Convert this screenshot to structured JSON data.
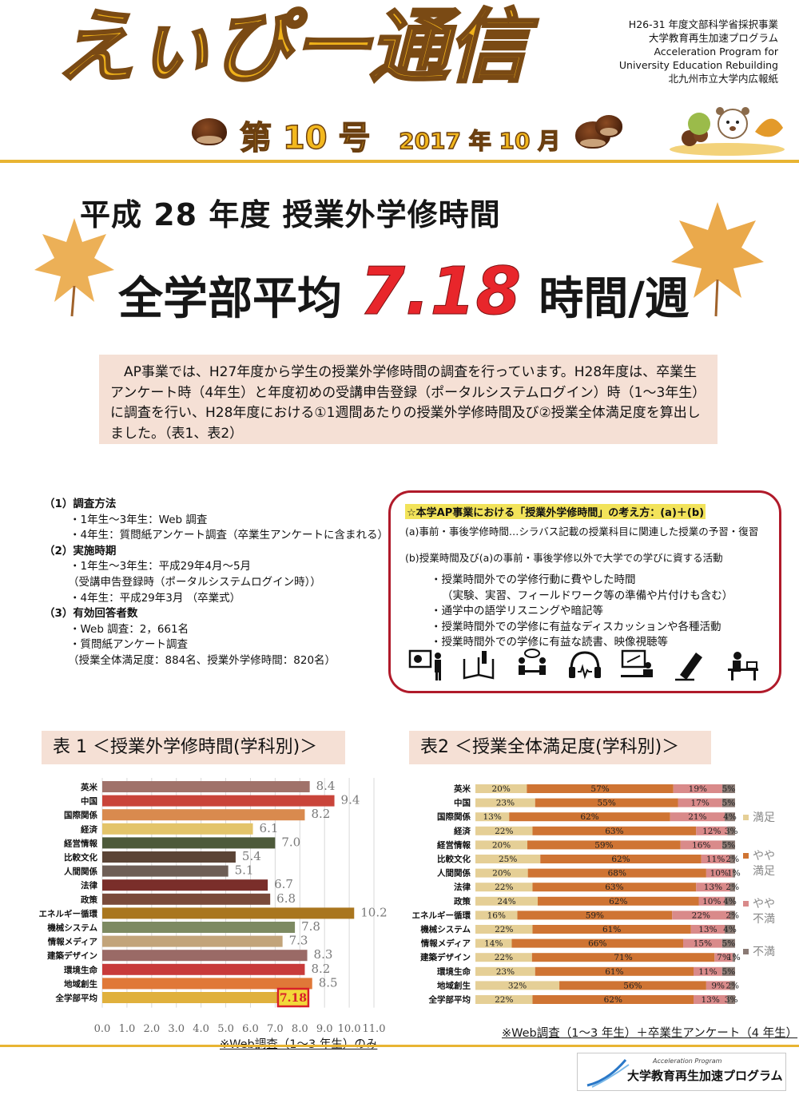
{
  "header": {
    "masthead": "えぃぴー通信",
    "issue_no": "第 10 号",
    "issue_date": "2017 年 10 月",
    "pub_lines": [
      "H26-31 年度文部科学省採択事業",
      "大学教育再生加速プログラム",
      "Acceleration Program for",
      "University Education Rebuilding",
      "北九州市立大学内広報紙"
    ]
  },
  "title": {
    "line1": "平成 28 年度  授業外学修時間",
    "line2_prefix": "全学部平均",
    "line2_value": "7.18",
    "line2_suffix": "時間/週"
  },
  "intro": "AP事業では、H27年度から学生の授業外学修時間の調査を行っています。H28年度は、卒業生アンケート時（4年生）と年度初めの受講申告登録（ポータルシステムログイン）時（1～3年生）に調査を行い、H28年度における①1週間あたりの授業外学修時間及び②授業全体満足度を算出しました。（表1、表2）",
  "method": {
    "lines": [
      {
        "text": "（1）調査方法",
        "cls": "h"
      },
      {
        "text": "・1年生～3年生：Web 調査",
        "cls": "i"
      },
      {
        "text": "・4年生：質問紙アンケート調査（卒業生アンケートに含まれる）",
        "cls": "i"
      },
      {
        "text": "（2）実施時期",
        "cls": "h"
      },
      {
        "text": "・1年生～3年生：平成29年4月～5月",
        "cls": "i"
      },
      {
        "text": "（受講申告登録時（ポータルシステムログイン時））",
        "cls": "i2"
      },
      {
        "text": "・4年生：平成29年3月 （卒業式）",
        "cls": "i"
      },
      {
        "text": "（3）有効回答者数",
        "cls": "h"
      },
      {
        "text": "・Web 調査：2，661名",
        "cls": "i"
      },
      {
        "text": "・質問紙アンケート調査",
        "cls": "i"
      },
      {
        "text": "（授業全体満足度：884名、授業外学修時間：820名）",
        "cls": "i2"
      }
    ]
  },
  "concept": {
    "title": "☆本学AP事業における「授業外学修時間」の考え方：(a)＋(b)",
    "a": "(a)事前・事後学修時間…シラバス記載の授業科目に関連した授業の予習・復習",
    "b": "(b)授業時間及び(a)の事前・事後学修以外で大学での学びに資する活動",
    "items": [
      "・授業時間外での学修行動に費やした時間",
      "（実験、実習、フィールドワーク等の準備や片付けも含む）",
      "・通学中の語学リスニングや暗記等",
      "・授業時間外での学修に有益なディスカッションや各種活動",
      "・授業時間外での学修に有益な読書、映像視聴等"
    ],
    "icons": [
      "presentation-icon",
      "reading-icon",
      "discussion-icon",
      "headphones-icon",
      "computer-icon",
      "writing-icon",
      "desk-study-icon"
    ]
  },
  "table1": {
    "title": "表 1 ＜授業外学修時間(学科別)＞",
    "note": "※Web調査（1～3 年生）のみ"
  },
  "table2": {
    "title": "表2 ＜授業全体満足度(学科別)＞",
    "note": "※Web調査（1～3 年生）＋卒業生アンケート（4 年生）"
  },
  "chart_data": [
    {
      "type": "bar",
      "orientation": "horizontal",
      "categories": [
        "英米",
        "中国",
        "国際関係",
        "経済",
        "経営情報",
        "比較文化",
        "人間関係",
        "法律",
        "政策",
        "エネルギー循環",
        "機械システム",
        "情報メディア",
        "建築デザイン",
        "環境生命",
        "地域創生",
        "全学部平均"
      ],
      "values": [
        8.4,
        9.4,
        8.2,
        6.1,
        7.0,
        5.4,
        5.1,
        6.7,
        6.8,
        10.2,
        7.8,
        7.3,
        8.3,
        8.2,
        8.5,
        7.18
      ],
      "labels": [
        "8.4",
        "9.4",
        "8.2",
        "6.1",
        "7.0",
        "5.4",
        "5.1",
        "6.7",
        "6.8",
        "10.2",
        "7.8",
        "7.3",
        "8.3",
        "8.2",
        "8.5",
        "7.18"
      ],
      "colors": [
        "#a0726a",
        "#c9443a",
        "#d98a4e",
        "#e3c46a",
        "#4d5a3a",
        "#5b4436",
        "#6e5e56",
        "#7a2e2a",
        "#7a4a3a",
        "#a9761e",
        "#7d8a62",
        "#c2a47a",
        "#9a6a66",
        "#c83a3a",
        "#e07838",
        "#e0b03c"
      ],
      "xlim": [
        0,
        11
      ],
      "xticks": [
        "0.0",
        "1.0",
        "2.0",
        "3.0",
        "4.0",
        "5.0",
        "6.0",
        "7.0",
        "8.0",
        "9.0",
        "10.0",
        "11.0"
      ],
      "grid": true,
      "highlight": "全学部平均"
    },
    {
      "type": "bar",
      "stacked": true,
      "orientation": "horizontal",
      "categories": [
        "英米",
        "中国",
        "国際関係",
        "経済",
        "経営情報",
        "比較文化",
        "人間関係",
        "法律",
        "政策",
        "エネルギー循環",
        "機械システム",
        "情報メディア",
        "建築デザイン",
        "環境生命",
        "地域創生",
        "全学部平均"
      ],
      "series": [
        {
          "name": "満足",
          "color": "#e5cf96",
          "values": [
            20,
            23,
            13,
            22,
            20,
            25,
            20,
            22,
            24,
            16,
            22,
            14,
            22,
            23,
            32,
            22
          ]
        },
        {
          "name": "やや満足",
          "color": "#cf7433",
          "values": [
            57,
            55,
            62,
            63,
            59,
            62,
            68,
            63,
            62,
            59,
            61,
            66,
            71,
            61,
            56,
            62
          ]
        },
        {
          "name": "やや不満",
          "color": "#d98a8a",
          "values": [
            19,
            17,
            21,
            12,
            16,
            11,
            10,
            13,
            10,
            22,
            13,
            15,
            7,
            11,
            9,
            13
          ]
        },
        {
          "name": "不満",
          "color": "#8a7a74",
          "values": [
            5,
            5,
            4,
            3,
            5,
            2,
            1,
            2,
            4,
            2,
            4,
            5,
            1,
            5,
            2,
            3
          ]
        }
      ],
      "labels": [
        [
          "20%",
          "57%",
          "19%",
          "5%"
        ],
        [
          "23%",
          "55%",
          "17%",
          "5%"
        ],
        [
          "13%",
          "62%",
          "21%",
          "4%"
        ],
        [
          "22%",
          "63%",
          "12%",
          "3%"
        ],
        [
          "20%",
          "59%",
          "16%",
          "5%"
        ],
        [
          "25%",
          "62%",
          "11%",
          "2%"
        ],
        [
          "20%",
          "68%",
          "10%",
          "1%"
        ],
        [
          "22%",
          "63%",
          "13%",
          "2%"
        ],
        [
          "24%",
          "62%",
          "10%",
          "4%"
        ],
        [
          "16%",
          "59%",
          "22%",
          "2%"
        ],
        [
          "22%",
          "61%",
          "13%",
          "4%"
        ],
        [
          "14%",
          "66%",
          "15%",
          "5%"
        ],
        [
          "22%",
          "71%",
          "7%",
          "1%"
        ],
        [
          "23%",
          "61%",
          "11%",
          "5%"
        ],
        [
          "32%",
          "56%",
          "9%",
          "2%"
        ],
        [
          "22%",
          "62%",
          "13%",
          "3%"
        ]
      ],
      "legend": {
        "position": "right",
        "labels": [
          "満足",
          "やや満足",
          "やや不満",
          "不満"
        ]
      }
    }
  ],
  "footer": {
    "logo_sub": "Acceleration Program",
    "logo_main": "大学教育再生加速プログラム"
  }
}
